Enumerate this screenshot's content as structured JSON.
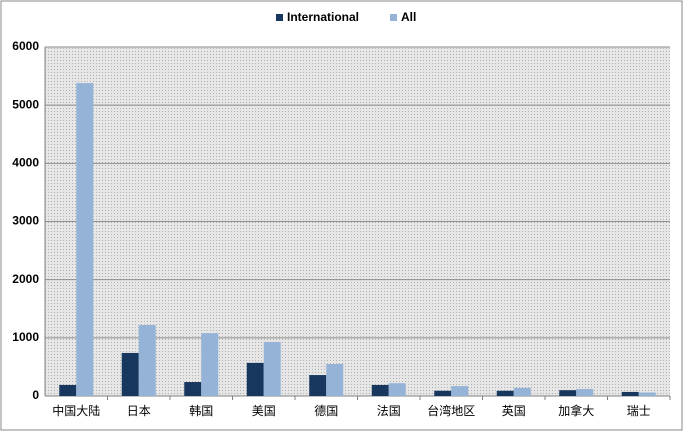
{
  "chart_data": {
    "type": "bar",
    "categories": [
      "中国大陆",
      "日本",
      "韩国",
      "美国",
      "德国",
      "法国",
      "台湾地区",
      "英国",
      "加拿大",
      "瑞士"
    ],
    "series": [
      {
        "name": "International",
        "color": "#17375e",
        "values": [
          190,
          740,
          240,
          570,
          360,
          190,
          90,
          90,
          100,
          70
        ]
      },
      {
        "name": "All",
        "color": "#95b3d7",
        "values": [
          5380,
          1220,
          1080,
          930,
          550,
          220,
          170,
          140,
          120,
          60
        ]
      }
    ],
    "ylim": [
      0,
      6000
    ],
    "yticks": [
      0,
      1000,
      2000,
      3000,
      4000,
      5000,
      6000
    ],
    "grid": true,
    "legend": "top"
  }
}
